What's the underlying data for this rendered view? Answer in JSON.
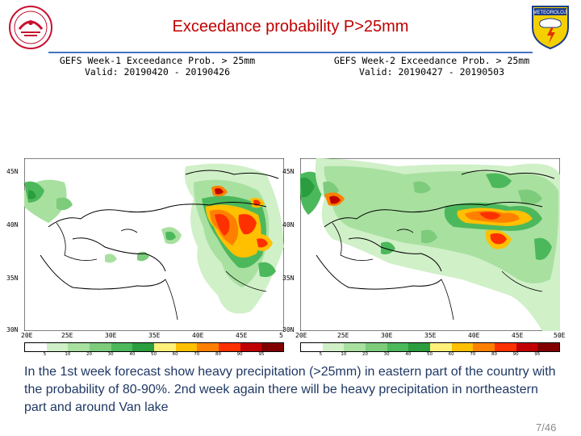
{
  "slide": {
    "title": "Exceedance probability P>25mm",
    "logo_right_text": "METEOROLOJİ",
    "page_number": "7/46",
    "caption": "In the 1st week forecast show  heavy  precipitation (>25mm) in eastern part of the country with the probability of 80-90%. 2nd week again there will be heavy precipitation in northeastern part and around Van lake"
  },
  "maps": [
    {
      "header_line1": "GEFS Week-1 Exceedance Prob. > 25mm",
      "header_line2": "Valid: 20190420 - 20190426"
    },
    {
      "header_line1": "GEFS Week-2 Exceedance Prob. > 25mm",
      "header_line2": "Valid: 20190427 - 20190503"
    }
  ],
  "axis": {
    "lat_labels": [
      "45N",
      "40N",
      "35N",
      "30N"
    ],
    "lon_labels_left": [
      "20E",
      "25E",
      "30E",
      "35E",
      "40E",
      "45E",
      "5"
    ],
    "lon_labels_right": [
      "20E",
      "25E",
      "30E",
      "35E",
      "40E",
      "45E",
      "50E"
    ]
  },
  "legend": {
    "values": [
      "5",
      "10",
      "20",
      "30",
      "40",
      "50",
      "60",
      "70",
      "80",
      "90",
      "95"
    ],
    "colors": [
      "#ffffff",
      "#d0f0c8",
      "#a8e0a0",
      "#7ccc7c",
      "#4cb85c",
      "#2a9e3e",
      "#fff07a",
      "#ffc000",
      "#ff8000",
      "#ff3000",
      "#c00000",
      "#800000"
    ]
  }
}
